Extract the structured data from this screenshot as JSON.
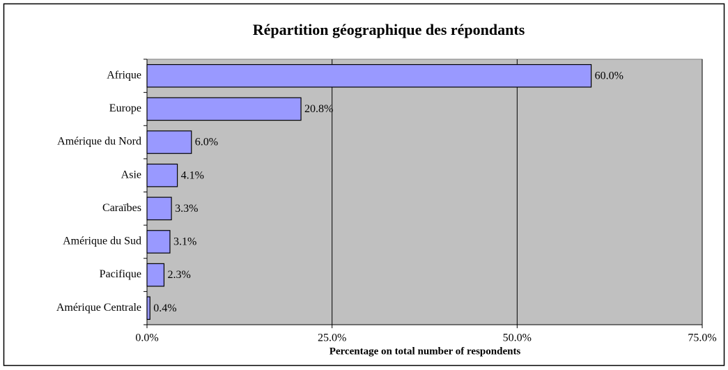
{
  "chart_data": {
    "type": "bar",
    "orientation": "horizontal",
    "title": "Répartition géographique des répondants",
    "x_label": "Percentage on total number of respondents",
    "categories": [
      "Afrique",
      "Europe",
      "Amérique du Nord",
      "Asie",
      "Caraïbes",
      "Amérique du Sud",
      "Pacifique",
      "Amérique Centrale"
    ],
    "values": [
      60.0,
      20.8,
      6.0,
      4.1,
      3.3,
      3.1,
      2.3,
      0.4
    ],
    "value_labels": [
      "60.0%",
      "20.8%",
      "6.0%",
      "4.1%",
      "3.3%",
      "3.1%",
      "2.3%",
      "0.4%"
    ],
    "color": "#9999ff",
    "xlim": [
      0,
      75
    ],
    "xticks": [
      {
        "value": 0,
        "label": "0.0%"
      },
      {
        "value": 25,
        "label": "25.0%"
      },
      {
        "value": 50,
        "label": "50.0%"
      },
      {
        "value": 75,
        "label": "75.0%"
      }
    ],
    "grid": true
  }
}
